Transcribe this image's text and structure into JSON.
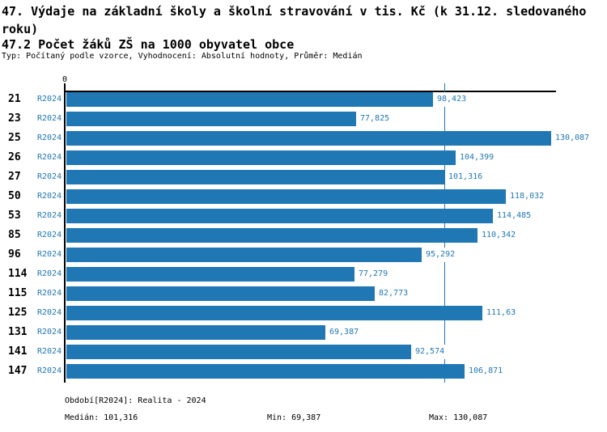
{
  "header": {
    "title": "47. Výdaje na základní školy a školní stravování v tis. Kč (k 31.12. sledovaného roku)",
    "subtitle": "47.2 Počet žáků ZŠ na 1000 obyvatel obce",
    "meta": "Typ: Počítaný podle vzorce, Vyhodnocení: Absolutní hodnoty, Průměr: Medián"
  },
  "chart_data": {
    "type": "bar",
    "orientation": "horizontal",
    "title": "47.2 Počet žáků ZŠ na 1000 obyvatel obce",
    "xlabel": "",
    "ylabel": "",
    "xlim": [
      0,
      130.087
    ],
    "axis_zero_label": "0",
    "grid": "median-line-only",
    "legend_position": "none",
    "categories": [
      "21",
      "23",
      "25",
      "26",
      "27",
      "50",
      "53",
      "85",
      "96",
      "114",
      "115",
      "125",
      "131",
      "141",
      "147"
    ],
    "series": [
      {
        "name": "R2024",
        "values": [
          98.423,
          77.825,
          130.087,
          104.399,
          101.316,
          118.032,
          114.485,
          110.342,
          95.292,
          77.279,
          82.773,
          111.63,
          69.387,
          92.574,
          106.871
        ],
        "value_labels": [
          "98,423",
          "77,825",
          "130,087",
          "104,399",
          "101,316",
          "118,032",
          "114,485",
          "110,342",
          "95,292",
          "77,279",
          "82,773",
          "111,63",
          "69,387",
          "92,574",
          "106,871"
        ]
      }
    ],
    "median_line_value": 101.316,
    "colors": {
      "bar": "#1f77b4",
      "blue_text": "#1f77b4",
      "median_line": "#1f77b4",
      "axis": "#000000"
    }
  },
  "footer": {
    "period": "Období[R2024]: Realita - 2024",
    "median": "Medián: 101,316",
    "min": "Min: 69,387",
    "max": "Max: 130,087"
  }
}
